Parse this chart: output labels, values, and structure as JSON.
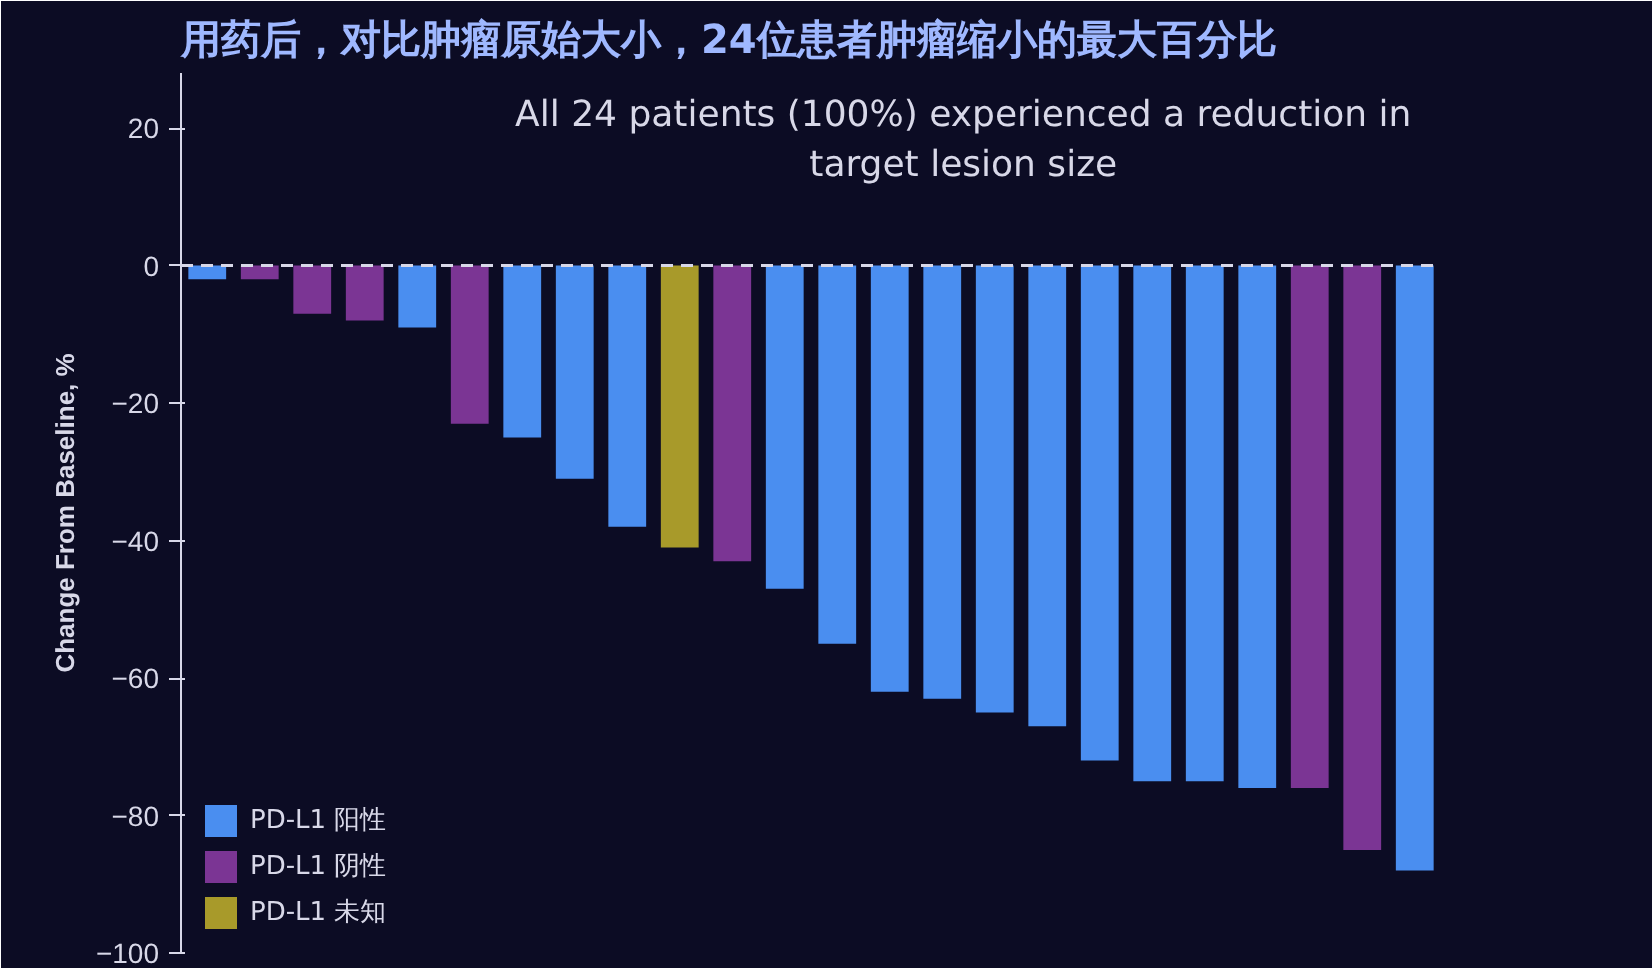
{
  "chart_data": {
    "type": "bar",
    "title": "用药后，对比肿瘤原始大小，24位患者肿瘤缩小的最大百分比",
    "subtitle": "All 24 patients (100%) experienced a reduction in\ntarget lesion size",
    "ylabel": "Change From Baseline, %",
    "categories": [
      null,
      null,
      null,
      null,
      null,
      null,
      null,
      null,
      null,
      null,
      null,
      null,
      null,
      null,
      null,
      null,
      null,
      null,
      null,
      null,
      null,
      null,
      null,
      null
    ],
    "series": [
      {
        "name": "PD-L1 阳性",
        "color": "#4a8ef0",
        "values": [
          -2,
          null,
          null,
          null,
          -9,
          null,
          -25,
          -31,
          -38,
          null,
          null,
          -47,
          -55,
          -62,
          -63,
          -65,
          -67,
          -72,
          -75,
          -75,
          -76,
          null,
          null,
          -88
        ]
      },
      {
        "name": "PD-L1 阴性",
        "color": "#7b3594",
        "values": [
          null,
          -2,
          -7,
          -8,
          null,
          -23,
          null,
          null,
          null,
          null,
          -43,
          null,
          null,
          null,
          null,
          null,
          null,
          null,
          null,
          null,
          null,
          -76,
          -85,
          null
        ]
      },
      {
        "name": "PD-L1 未知",
        "color": "#a89a2a",
        "values": [
          null,
          null,
          null,
          null,
          null,
          null,
          null,
          null,
          null,
          -41,
          null,
          null,
          null,
          null,
          null,
          null,
          null,
          null,
          null,
          null,
          null,
          null,
          null,
          null
        ]
      }
    ],
    "ylim": [
      -100,
      28
    ],
    "yticks": [
      -100,
      -80,
      -60,
      -40,
      -20,
      0,
      20
    ],
    "ref_lines": [
      {
        "axis": "y",
        "value": 0,
        "label": null,
        "color": "#d8d8e8",
        "line_style": "dashed"
      }
    ],
    "stacked": true,
    "legend": "bottom left",
    "grid": false
  }
}
